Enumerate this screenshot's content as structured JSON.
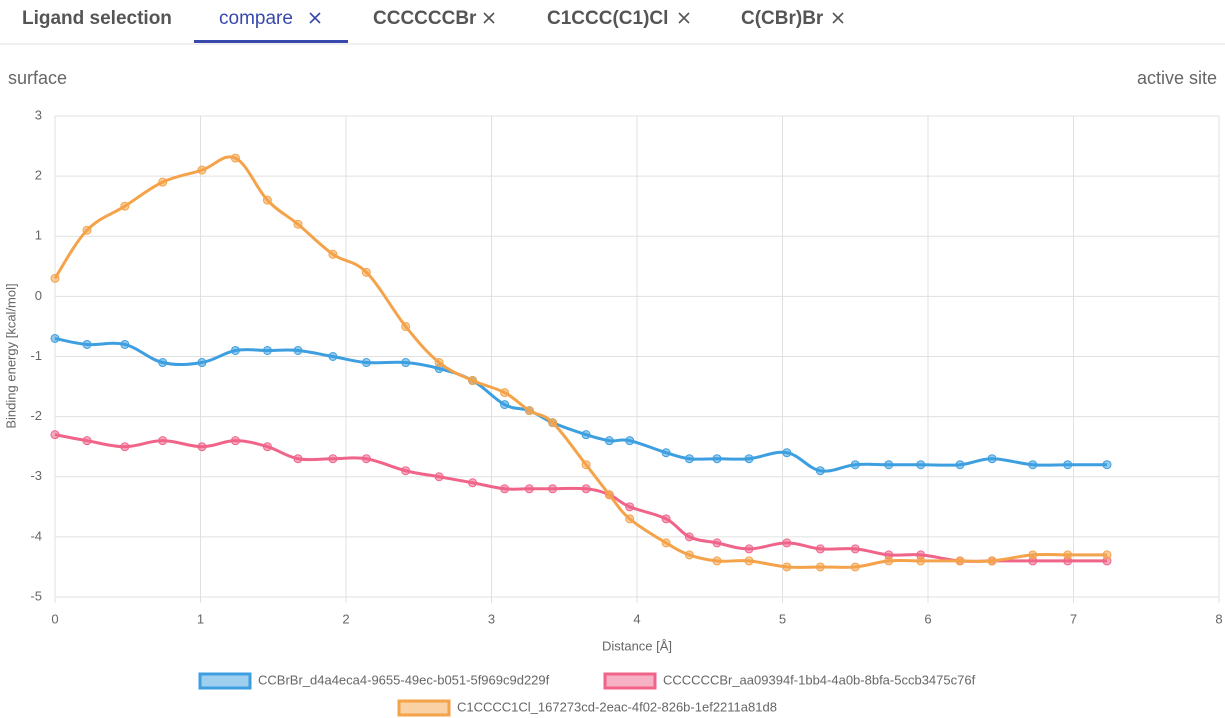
{
  "tabs": [
    {
      "label": "Ligand selection"
    },
    {
      "label": "compare"
    },
    {
      "label": "CCCCCCBr"
    },
    {
      "label": "C1CCC(C1)Cl"
    },
    {
      "label": "C(CBr)Br"
    }
  ],
  "chart_data": {
    "type": "line",
    "annotations": [
      "surface",
      "active site"
    ],
    "x_label": "Distance [Å]",
    "y_label": "Binding energy [kcal/mol]",
    "xlim": [
      0,
      8
    ],
    "xticks": [
      0,
      1,
      2,
      3,
      4,
      5,
      6,
      7,
      8
    ],
    "ylim": [
      -5,
      3
    ],
    "yticks": [
      -5,
      -4,
      -3,
      -2,
      -1,
      0,
      1,
      2,
      3
    ],
    "grid": true,
    "x": [
      0,
      0.22,
      0.48,
      0.74,
      1.01,
      1.24,
      1.46,
      1.67,
      1.91,
      2.14,
      2.41,
      2.64,
      2.87,
      3.09,
      3.26,
      3.42,
      3.65,
      3.81,
      3.95,
      4.2,
      4.36,
      4.55,
      4.77,
      5.03,
      5.26,
      5.5,
      5.73,
      5.95,
      6.22,
      6.44,
      6.72,
      6.96,
      7.23
    ],
    "series": [
      {
        "name": "CCBrBr_d4a4eca4-9655-49ec-b051-5f969c9d229f",
        "color": "#3d9fe0",
        "values": [
          -0.7,
          -0.8,
          -0.8,
          -1.1,
          -1.1,
          -0.9,
          -0.9,
          -0.9,
          -1.0,
          -1.1,
          -1.1,
          -1.2,
          -1.4,
          -1.8,
          -1.9,
          -2.1,
          -2.3,
          -2.4,
          -2.4,
          -2.6,
          -2.7,
          -2.7,
          -2.7,
          -2.6,
          -2.9,
          -2.8,
          -2.8,
          -2.8,
          -2.8,
          -2.7,
          -2.8,
          -2.8,
          -2.8
        ]
      },
      {
        "name": "CCCCCCBr_aa09394f-1bb4-4a0b-8bfa-5ccb3475c76f",
        "color": "#f0648a",
        "values": [
          -2.3,
          -2.4,
          -2.5,
          -2.4,
          -2.5,
          -2.4,
          -2.5,
          -2.7,
          -2.7,
          -2.7,
          -2.9,
          -3.0,
          -3.1,
          -3.2,
          -3.2,
          -3.2,
          -3.2,
          -3.3,
          -3.5,
          -3.7,
          -4.0,
          -4.1,
          -4.2,
          -4.1,
          -4.2,
          -4.2,
          -4.3,
          -4.3,
          -4.4,
          -4.4,
          -4.4,
          -4.4,
          -4.4
        ]
      },
      {
        "name": "C1CCCC1Cl_167273cd-2eac-4f02-826b-1ef2211a81d8",
        "color": "#f4a34a",
        "values": [
          0.3,
          1.1,
          1.5,
          1.9,
          2.1,
          2.3,
          1.6,
          1.2,
          0.7,
          0.4,
          -0.5,
          -1.1,
          -1.4,
          -1.6,
          -1.9,
          -2.1,
          -2.8,
          -3.3,
          -3.7,
          -4.1,
          -4.3,
          -4.4,
          -4.4,
          -4.5,
          -4.5,
          -4.5,
          -4.4,
          -4.4,
          -4.4,
          -4.4,
          -4.3,
          -4.3,
          -4.3
        ]
      }
    ]
  }
}
